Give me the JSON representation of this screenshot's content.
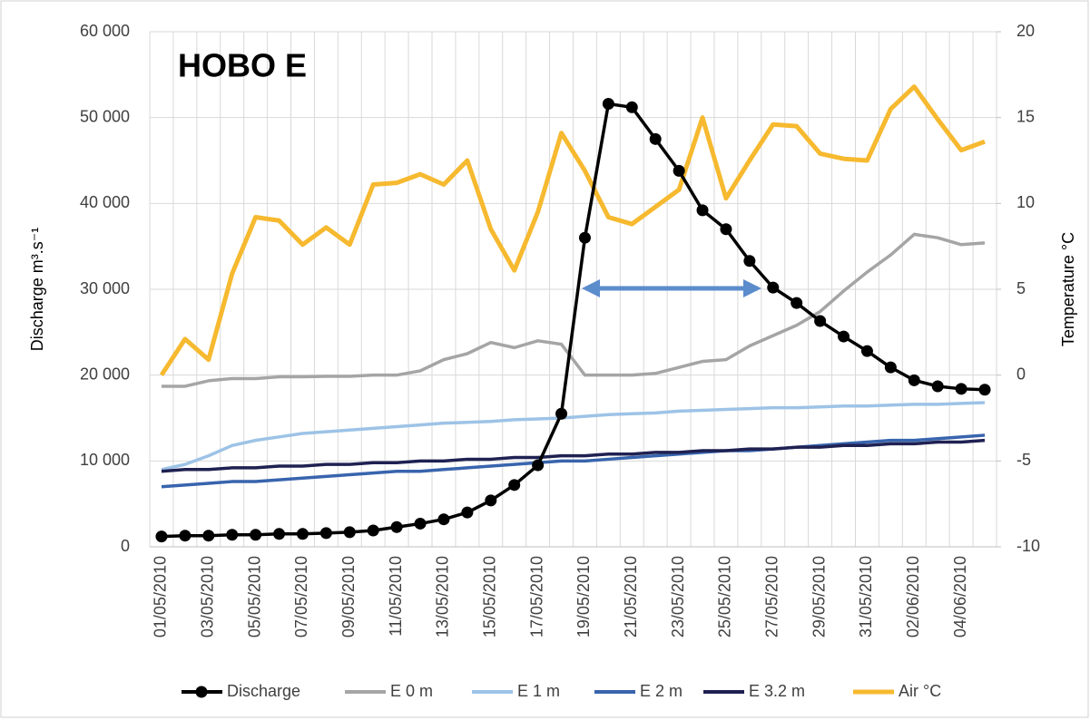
{
  "chart_data": {
    "type": "line",
    "title": "HOBO E",
    "y_label": "Discharge m³.s⁻¹",
    "y2_label": "Temperature °C",
    "categories": [
      "01/05/2010",
      null,
      "03/05/2010",
      null,
      "05/05/2010",
      null,
      "07/05/2010",
      null,
      "09/05/2010",
      null,
      "11/05/2010",
      null,
      "13/05/2010",
      null,
      "15/05/2010",
      null,
      "17/05/2010",
      null,
      "19/05/2010",
      null,
      "21/05/2010",
      null,
      "23/05/2010",
      null,
      "25/05/2010",
      null,
      "27/05/2010",
      null,
      "29/05/2010",
      null,
      "31/05/2010",
      null,
      "02/06/2010",
      null,
      "04/06/2010",
      null
    ],
    "ylim": [
      0,
      60000
    ],
    "yticks": [
      0,
      {
        "value": 10000,
        "label": "10 000"
      },
      {
        "value": 20000,
        "label": "20 000"
      },
      {
        "value": 30000,
        "label": "30 000"
      },
      {
        "value": 40000,
        "label": "40 000"
      },
      {
        "value": 50000,
        "label": "50 000"
      },
      {
        "value": 60000,
        "label": "60 000"
      }
    ],
    "y2lim": [
      -10,
      20
    ],
    "y2ticks": [
      -10,
      -5,
      0,
      5,
      10,
      15,
      20
    ],
    "grid": true,
    "legend": "bottom",
    "series": [
      {
        "name": "Discharge",
        "color": "#000000",
        "markers": true,
        "values": [
          1200,
          1300,
          1300,
          1400,
          1400,
          1500,
          1500,
          1600,
          1700,
          1900,
          2300,
          2700,
          3200,
          4000,
          5400,
          7200,
          9500,
          15500,
          36000,
          51600,
          51200,
          47500,
          43800,
          39200,
          37000,
          33300,
          30200,
          28400,
          26300,
          24500,
          22800,
          20900,
          19400,
          18700,
          18400,
          18300
        ]
      },
      {
        "name": "E 0 m",
        "color": "#a5a5a5",
        "axis": "y2",
        "values": [
          -0.65,
          -0.65,
          -0.33,
          -0.2,
          -0.2,
          -0.1,
          -0.1,
          -0.07,
          -0.07,
          0,
          0,
          0.25,
          0.9,
          1.25,
          1.9,
          1.6,
          2,
          1.8,
          0,
          0,
          0,
          0.1,
          0.45,
          0.8,
          0.9,
          1.7,
          2.3,
          2.9,
          3.7,
          4.9,
          6,
          7,
          8.2,
          8,
          7.6,
          7.7
        ]
      },
      {
        "name": "E 1 m",
        "color": "#9dc3e6",
        "axis": "y2",
        "values": [
          -5.5,
          -5.2,
          -4.7,
          -4.1,
          -3.8,
          -3.6,
          -3.4,
          -3.3,
          -3.2,
          -3.1,
          -3,
          -2.9,
          -2.8,
          -2.75,
          -2.7,
          -2.6,
          -2.55,
          -2.5,
          -2.4,
          -2.3,
          -2.25,
          -2.2,
          -2.1,
          -2.05,
          -2,
          -1.95,
          -1.9,
          -1.9,
          -1.85,
          -1.8,
          -1.8,
          -1.75,
          -1.7,
          -1.7,
          -1.65,
          -1.6
        ]
      },
      {
        "name": "E 2 m",
        "color": "#3864ad",
        "axis": "y2",
        "values": [
          -6.5,
          -6.4,
          -6.3,
          -6.2,
          -6.2,
          -6.1,
          -6,
          -5.9,
          -5.8,
          -5.7,
          -5.6,
          -5.6,
          -5.5,
          -5.4,
          -5.3,
          -5.2,
          -5.1,
          -5,
          -5,
          -4.9,
          -4.8,
          -4.7,
          -4.6,
          -4.5,
          -4.4,
          -4.4,
          -4.3,
          -4.2,
          -4.1,
          -4,
          -3.9,
          -3.8,
          -3.8,
          -3.7,
          -3.6,
          -3.5
        ]
      },
      {
        "name": "E 3.2 m",
        "color": "#1f2152",
        "axis": "y2",
        "values": [
          -5.6,
          -5.5,
          -5.5,
          -5.4,
          -5.4,
          -5.3,
          -5.3,
          -5.2,
          -5.2,
          -5.1,
          -5.1,
          -5,
          -5,
          -4.9,
          -4.9,
          -4.8,
          -4.8,
          -4.7,
          -4.7,
          -4.6,
          -4.6,
          -4.5,
          -4.5,
          -4.4,
          -4.4,
          -4.3,
          -4.3,
          -4.2,
          -4.2,
          -4.1,
          -4.1,
          -4,
          -4,
          -3.9,
          -3.9,
          -3.8
        ]
      },
      {
        "name": "Air °C",
        "color": "#f6b92f",
        "axis": "y2",
        "values": [
          0,
          2.1,
          0.9,
          5.9,
          9.2,
          9,
          7.6,
          8.6,
          7.6,
          11.1,
          11.2,
          11.7,
          11.1,
          12.5,
          8.5,
          6.1,
          9.5,
          14.1,
          11.9,
          9.2,
          8.8,
          9.8,
          10.8,
          15,
          10.3,
          12.5,
          14.6,
          14.5,
          12.9,
          12.6,
          12.5,
          15.5,
          16.8,
          14.9,
          13.1,
          13.6
        ]
      }
    ]
  }
}
